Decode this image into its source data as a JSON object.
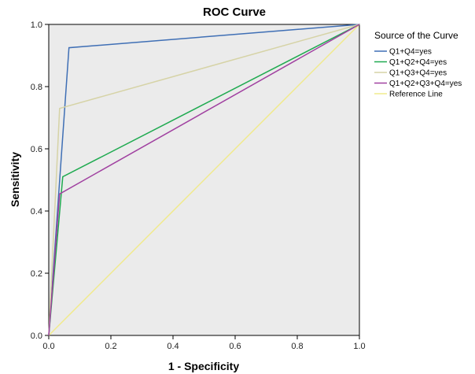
{
  "chart_data": {
    "type": "line",
    "title": "ROC Curve",
    "xlabel": "1 - Specificity",
    "ylabel": "Sensitivity",
    "xlim": [
      0,
      1
    ],
    "ylim": [
      0,
      1
    ],
    "x_ticks": [
      "0.0",
      "0.2",
      "0.4",
      "0.6",
      "0.8",
      "1.0"
    ],
    "y_ticks": [
      "0.0",
      "0.2",
      "0.4",
      "0.6",
      "0.8",
      "1.0"
    ],
    "grid": false,
    "background_color": "#ebebeb",
    "legend": {
      "title": "Source of the Curve",
      "placement": "right"
    },
    "series": [
      {
        "name": "Q1+Q4=yes",
        "color": "#3f6fb5",
        "points": [
          [
            0,
            0
          ],
          [
            0.065,
            0.925
          ],
          [
            1,
            1
          ]
        ]
      },
      {
        "name": "Q1+Q2+Q4=yes",
        "color": "#1faa50",
        "points": [
          [
            0,
            0
          ],
          [
            0.045,
            0.51
          ],
          [
            1,
            1
          ]
        ]
      },
      {
        "name": "Q1+Q3+Q4=yes",
        "color": "#d6d3a6",
        "points": [
          [
            0,
            0
          ],
          [
            0.035,
            0.73
          ],
          [
            1,
            1
          ]
        ]
      },
      {
        "name": "Q1+Q2+Q3+Q4=yes",
        "color": "#a040a0",
        "points": [
          [
            0,
            0
          ],
          [
            0.035,
            0.455
          ],
          [
            1,
            1
          ]
        ]
      },
      {
        "name": "Reference Line",
        "color": "#f0ea8c",
        "points": [
          [
            0,
            0
          ],
          [
            1,
            1
          ]
        ]
      }
    ]
  }
}
